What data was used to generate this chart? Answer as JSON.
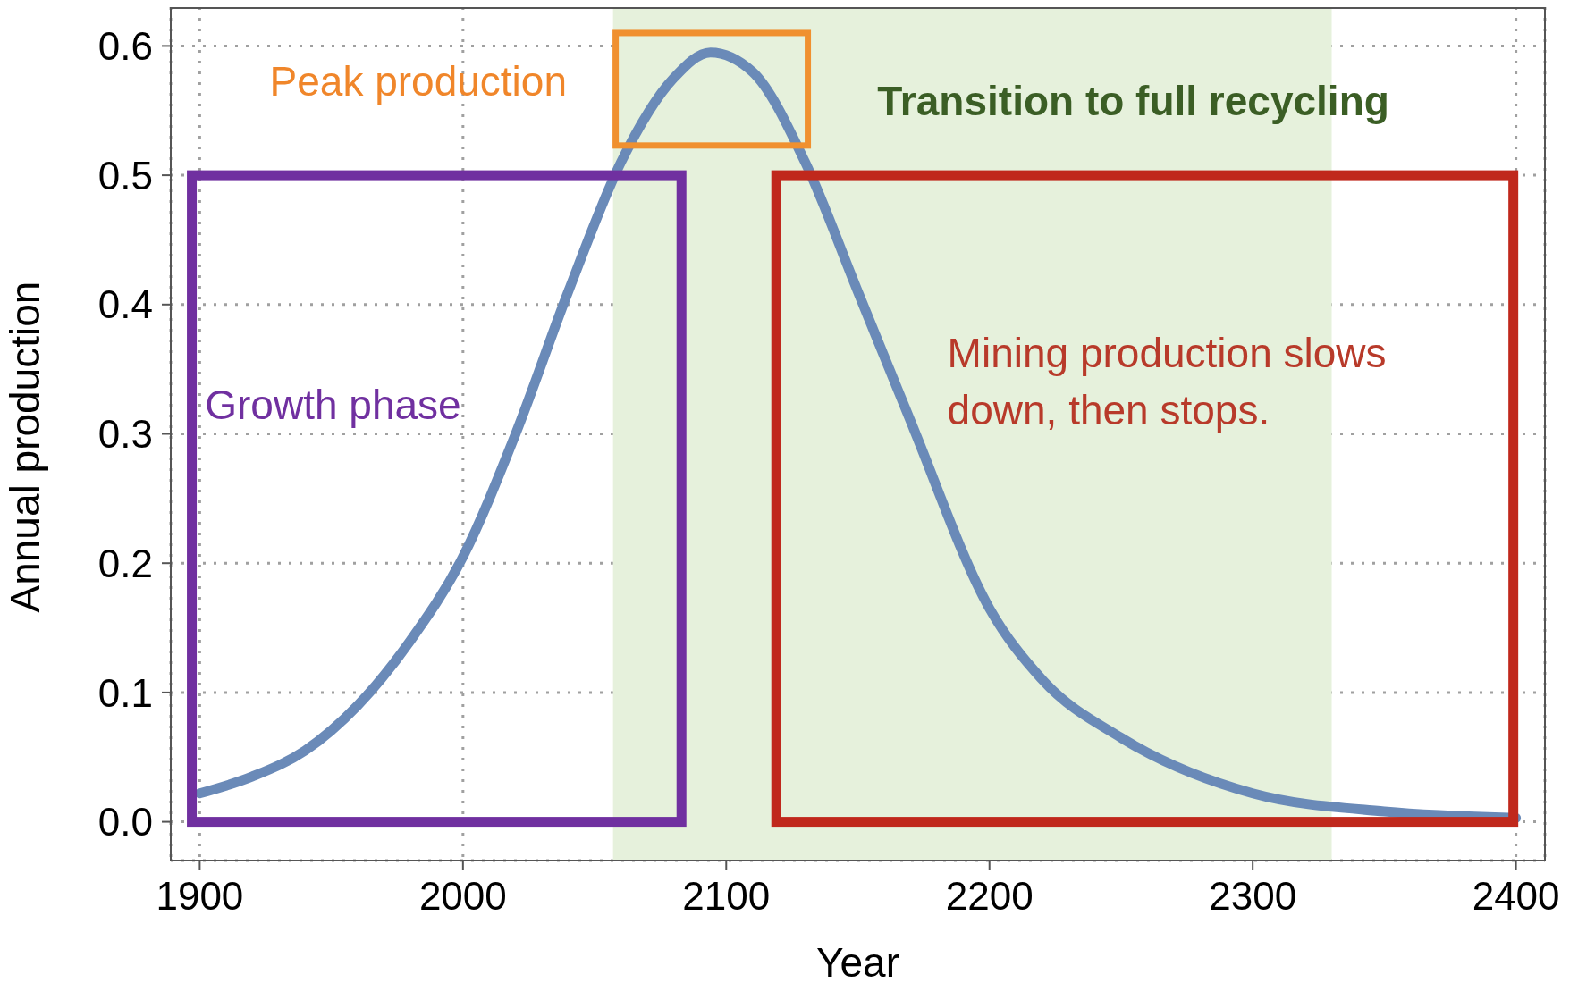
{
  "chart_data": {
    "type": "line",
    "xlabel": "Year",
    "ylabel": "Annual production",
    "x": [
      1900,
      1920,
      1940,
      1960,
      1980,
      2000,
      2020,
      2040,
      2060,
      2080,
      2094,
      2110,
      2130,
      2150,
      2170,
      2200,
      2220,
      2250,
      2300,
      2350,
      2400
    ],
    "series": [
      {
        "color": "#6a8ab8",
        "values": [
          0.022,
          0.035,
          0.055,
          0.09,
          0.14,
          0.205,
          0.3,
          0.41,
          0.51,
          0.575,
          0.595,
          0.58,
          0.51,
          0.41,
          0.31,
          0.165,
          0.11,
          0.065,
          0.022,
          0.008,
          0.003
        ]
      }
    ],
    "xlim": [
      1889,
      2411
    ],
    "xticks": [
      1900,
      2000,
      2100,
      2200,
      2300,
      2400
    ],
    "ylim": [
      -0.03,
      0.63
    ],
    "yticks": [
      {
        "value": 0,
        "label": "0.0"
      },
      {
        "value": 0.1,
        "label": "0.1"
      },
      {
        "value": 0.2,
        "label": "0.2"
      },
      {
        "value": 0.3,
        "label": "0.3"
      },
      {
        "value": 0.4,
        "label": "0.4"
      },
      {
        "value": 0.5,
        "label": "0.5"
      },
      {
        "value": 0.6,
        "label": "0.6"
      }
    ],
    "bands": [
      {
        "axis": "x",
        "from": 2057,
        "to": 2330,
        "label": "Transition to full recycling",
        "color": "#e6f1dc"
      }
    ],
    "annotations": [
      "Peak production",
      "Growth phase",
      "Mining production slows down, then stops."
    ],
    "grid": true,
    "marker": "none",
    "line_style": "solid"
  }
}
